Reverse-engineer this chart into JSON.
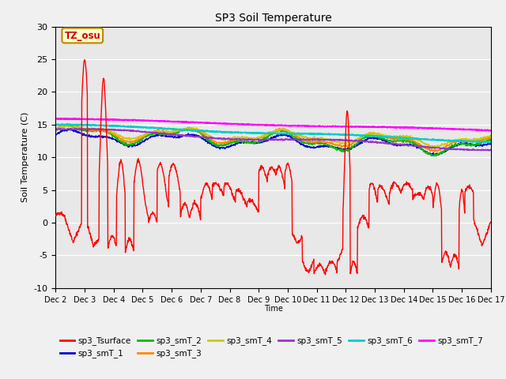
{
  "title": "SP3 Soil Temperature",
  "ylabel": "Soil Temperature (C)",
  "xlabel": "Time",
  "annotation": "TZ_osu",
  "ylim": [
    -10,
    30
  ],
  "series_colors": {
    "sp3_Tsurface": "#ff0000",
    "sp3_smT_1": "#0000cc",
    "sp3_smT_2": "#00bb00",
    "sp3_smT_3": "#ff8800",
    "sp3_smT_4": "#cccc00",
    "sp3_smT_5": "#9933cc",
    "sp3_smT_6": "#00cccc",
    "sp3_smT_7": "#ff00ff"
  },
  "xtick_labels": [
    "Dec 2",
    "Dec 3",
    "Dec 4",
    "Dec 5",
    "Dec 6",
    "Dec 7",
    "Dec 8",
    "Dec 9",
    "Dec 10",
    "Dec 11",
    "Dec 12",
    "Dec 13",
    "Dec 14",
    "Dec 15",
    "Dec 16",
    "Dec 17"
  ],
  "ytick_labels": [
    "-10",
    "-5",
    "0",
    "5",
    "10",
    "15",
    "20",
    "25",
    "30"
  ],
  "ytick_vals": [
    -10,
    -5,
    0,
    5,
    10,
    15,
    20,
    25,
    30
  ],
  "figsize": [
    6.4,
    4.8
  ],
  "dpi": 100
}
